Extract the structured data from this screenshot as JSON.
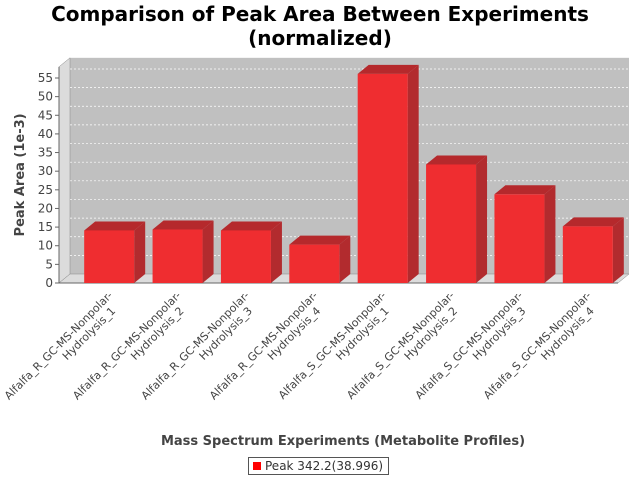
{
  "chart_data": {
    "type": "bar",
    "title": "Comparison of Peak Area Between Experiments (normalized)",
    "title_lines": [
      "Comparison of Peak Area Between Experiments",
      "(normalized)"
    ],
    "xlabel": "Mass Spectrum Experiments (Metabolite Profiles)",
    "ylabel": "Peak Area (1e-3)",
    "ylim": [
      0,
      58
    ],
    "yticks": [
      0,
      5,
      10,
      15,
      20,
      25,
      30,
      35,
      40,
      45,
      50,
      55
    ],
    "grid": true,
    "legend_placement": "bottom",
    "categories": [
      [
        "Alfalfa_R_GC-MS-Nonpolar-",
        "Hydrolysis_1"
      ],
      [
        "Alfalfa_R_GC-MS-Nonpolar-",
        "Hydrolysis_2"
      ],
      [
        "Alfalfa_R_GC-MS-Nonpolar-",
        "Hydrolysis_3"
      ],
      [
        "Alfalfa_R_GC-MS-Nonpolar-",
        "Hydrolysis_4"
      ],
      [
        "Alfalfa_S_GC-MS-Nonpolar-",
        "Hydrolysis_1"
      ],
      [
        "Alfalfa_S_GC-MS-Nonpolar-",
        "Hydrolysis_2"
      ],
      [
        "Alfalfa_S_GC-MS-Nonpolar-",
        "Hydrolysis_3"
      ],
      [
        "Alfalfa_S_GC-MS-Nonpolar-",
        "Hydrolysis_4"
      ]
    ],
    "series": [
      {
        "name": "Peak 342.2(38.996)",
        "color": "#ff0000",
        "values": [
          14.1,
          14.35,
          14.1,
          10.3,
          56.1,
          31.8,
          23.8,
          15.2
        ]
      }
    ]
  }
}
